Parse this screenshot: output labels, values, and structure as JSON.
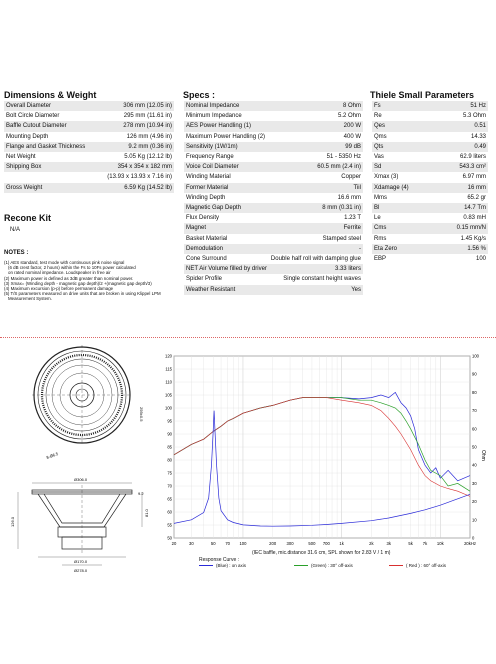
{
  "dimensions": {
    "title": "Dimensions & Weight",
    "rows": [
      [
        "Overall Diameter",
        "306 mm (12.05 in)"
      ],
      [
        "Bolt Circle Diameter",
        "295 mm (11.61 in)"
      ],
      [
        "Baffle Cutout Diameter",
        "278 mm (10.94 in)"
      ],
      [
        "Mounting Depth",
        "126 mm (4.96 in)"
      ],
      [
        "Flange and Gasket Thickness",
        "9.2 mm (0.36 in)"
      ],
      [
        "Net Weight",
        "5.05 Kg (12.12 lb)"
      ],
      [
        "Shipping Box",
        "354 x 354 x 182 mm"
      ],
      [
        "",
        "(13.93 x 13.93 x 7.16 in)"
      ],
      [
        "Gross Weight",
        "6.59 Kg (14.52 lb)"
      ]
    ]
  },
  "recone": {
    "title": "Recone Kit",
    "value": "N/A"
  },
  "notes": {
    "title": "NOTES :",
    "lines": [
      "(1) AES standard, test mode with continuous pink noise signal",
      "(6 dB crest factor, 2 hours) within the Fs to 10Fs power calculated",
      "on rated nominal impedance. Loudspeaker in free air",
      "(2) Maximum power is defined as 3dB greater than nominal power.",
      "(3) Xmax= (Winding depth - magnetic gap depth)/2 +(magnetic gap depth/3)",
      "(4) Maximum excursion (p-p) before permanent damage",
      "(5) T/S parameters measured on drive units that are broken in using Klippel LPM",
      "Measurement System."
    ]
  },
  "specs": {
    "title": "Specs :",
    "rows": [
      [
        "Nominal Impedance",
        "8 Ohm"
      ],
      [
        "Minimum Impedance",
        "5.2 Ohm"
      ],
      [
        "AES Power Handling (1)",
        "200 W"
      ],
      [
        "Maximum Power Handling (2)",
        "400 W"
      ],
      [
        "Sensitivity (1W/1m)",
        "99 dB"
      ],
      [
        "Frequency Range",
        "51 - 5350 Hz"
      ],
      [
        "Voice Coil Diameter",
        "60.5 mm (2.4 in)"
      ],
      [
        "Winding Material",
        "Copper"
      ],
      [
        "Former Material",
        "Tiil"
      ],
      [
        "Winding Depth",
        "16.6 mm"
      ],
      [
        "Magnetic Gap Depth",
        "8 mm (0.31 in)"
      ],
      [
        "Flux Density",
        "1.23 T"
      ],
      [
        "Magnet",
        "Ferrite"
      ],
      [
        "Basket Material",
        "Stamped steel"
      ],
      [
        "Demodulation",
        "-"
      ],
      [
        "Cone Surround",
        "Double half roll with damping glue"
      ],
      [
        "NET Air Volume filled by driver",
        "3.33 liters"
      ],
      [
        "Spider Profile",
        "Single constant height waves"
      ],
      [
        "Weather Resistant",
        "Yes"
      ]
    ]
  },
  "thiele": {
    "title": "Thiele Small Parameters",
    "rows": [
      [
        "Fs",
        "51 Hz"
      ],
      [
        "Re",
        "5.3 Ohm"
      ],
      [
        "Qes",
        "0.51"
      ],
      [
        "Qms",
        "14.33"
      ],
      [
        "Qts",
        "0.49"
      ],
      [
        "Vas",
        "62.9 liters"
      ],
      [
        "Sd",
        "543.3 cm²"
      ],
      [
        "Xmax (3)",
        "6.97 mm"
      ],
      [
        "Xdamage (4)",
        "16 mm"
      ],
      [
        "Mms",
        "65.2 gr"
      ],
      [
        "Bl",
        "14.7 Tm"
      ],
      [
        "Le",
        "0.83 mH"
      ],
      [
        "Cms",
        "0.15 mm/N"
      ],
      [
        "Rms",
        "1.45 Kg/s"
      ],
      [
        "Eta Zero",
        "1.56 %"
      ],
      [
        "EBP",
        "100"
      ]
    ]
  },
  "drawing": {
    "front_labels": [
      "295±0.5",
      "8-Ø6.5"
    ],
    "side_labels": [
      "Ø306.0",
      "Ø278.0",
      "Ø170.0",
      "9.2",
      "126.0",
      "81.0"
    ]
  },
  "chart_data": {
    "type": "line",
    "caption": "(IEC baffle, mic.distance 31.6 cm, SPL shown for 2.83 V / 1 m)",
    "legend_title": "Response Curve :",
    "x_ticks": [
      "20",
      "30",
      "50",
      "70",
      "100",
      "200",
      "300",
      "500",
      "700",
      "1k",
      "2k",
      "3k",
      "5k",
      "7k",
      "10k",
      "20kHz"
    ],
    "y_left_ticks": [
      "120",
      "115",
      "110",
      "105",
      "100",
      "95",
      "90",
      "85",
      "80",
      "75",
      "70",
      "65",
      "60",
      "55",
      "50"
    ],
    "y_right_ticks": [
      "100",
      "90",
      "80",
      "70",
      "60",
      "50",
      "40",
      "30",
      "20",
      "10",
      "0"
    ],
    "y_right_label": "Ohm",
    "ylim_left": [
      50,
      120
    ],
    "ylim_right": [
      0,
      100
    ],
    "series": [
      {
        "name": "(Blue) : on axis",
        "color": "#2a2ad8",
        "axis": "left",
        "x": [
          20,
          30,
          40,
          50,
          60,
          70,
          80,
          100,
          150,
          200,
          300,
          400,
          500,
          700,
          1000,
          1500,
          2000,
          2500,
          3000,
          3500,
          4000,
          4500,
          5000,
          5500,
          6000,
          7000,
          8000,
          9000,
          10000,
          12000,
          15000,
          20000
        ],
        "y": [
          82,
          86,
          88,
          91,
          93,
          95,
          96,
          98,
          100,
          101,
          103,
          104,
          104,
          104,
          104,
          103.5,
          104,
          105,
          104,
          106,
          102,
          100,
          97,
          92,
          84,
          78,
          75,
          77,
          73,
          76,
          72,
          74
        ]
      },
      {
        "name": "(Green) : 30° off-axis",
        "color": "#2aa02a",
        "axis": "left",
        "x": [
          20,
          30,
          40,
          50,
          60,
          70,
          80,
          100,
          150,
          200,
          300,
          400,
          500,
          700,
          1000,
          1500,
          2000,
          2500,
          3000,
          3500,
          4000,
          4500,
          5000,
          6000,
          7000,
          8000,
          10000,
          12000,
          15000,
          20000
        ],
        "y": [
          82,
          86,
          88,
          91,
          93,
          95,
          96,
          98,
          100,
          101,
          103,
          104,
          104,
          104,
          104,
          103,
          103,
          102,
          101,
          100,
          98,
          95,
          92,
          86,
          80,
          76,
          74,
          70,
          71,
          68
        ]
      },
      {
        "name": "( Red ) : 60° off-axis",
        "color": "#d83030",
        "axis": "left",
        "x": [
          20,
          30,
          40,
          50,
          60,
          70,
          80,
          100,
          150,
          200,
          300,
          400,
          500,
          700,
          1000,
          1500,
          2000,
          2500,
          3000,
          3500,
          4000,
          5000,
          6000,
          7000,
          8000,
          10000,
          12000,
          15000,
          20000
        ],
        "y": [
          82,
          86,
          88,
          91,
          93,
          95,
          96,
          98,
          100,
          101,
          103,
          104,
          104,
          104,
          103,
          102,
          101,
          99,
          96,
          93,
          90,
          84,
          78,
          74,
          72,
          70,
          69,
          68,
          66
        ],
        "dash": true
      },
      {
        "name": "Impedance",
        "color": "#2a2ad8",
        "axis": "right",
        "x": [
          20,
          30,
          40,
          45,
          48,
          50,
          51,
          52,
          54,
          57,
          60,
          70,
          80,
          100,
          150,
          200,
          300,
          500,
          700,
          1000,
          2000,
          3000,
          5000,
          7000,
          10000,
          20000
        ],
        "y": [
          8,
          10,
          14,
          22,
          40,
          60,
          70,
          60,
          40,
          22,
          15,
          10,
          8.5,
          7.2,
          6.6,
          6.5,
          6.6,
          7,
          7.4,
          8,
          9.5,
          11,
          13.5,
          15.5,
          18,
          24
        ]
      }
    ]
  }
}
